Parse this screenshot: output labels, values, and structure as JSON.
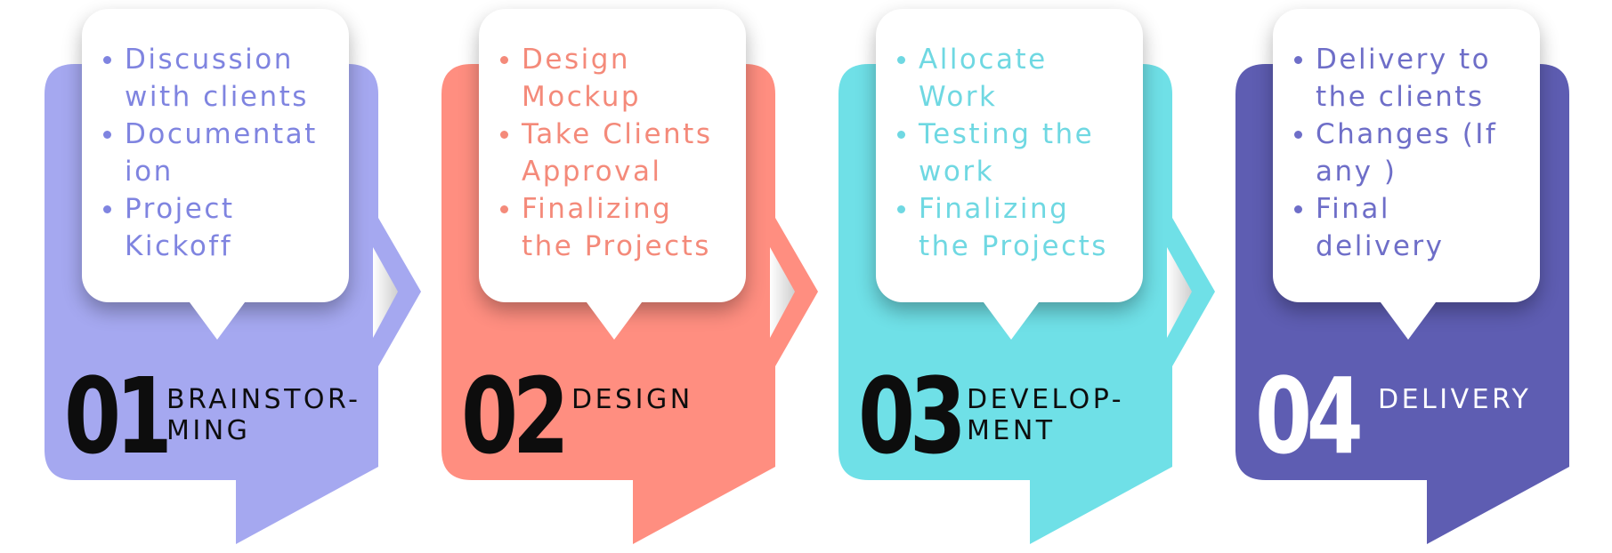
{
  "colors": {
    "brainstorming": "#A5A8F0",
    "design": "#FF8E80",
    "development": "#6FE0E7",
    "delivery": "#5E5DB2",
    "bullet_brainstorming": "#7F84E0",
    "bullet_design": "#F48A7A",
    "bullet_development": "#6FD8E2",
    "bullet_delivery": "#6E6EC8",
    "number_dark": "#0d0d0d",
    "number_light": "#ffffff"
  },
  "stages": [
    {
      "number": "01",
      "label": "BRAINSTOR-\nMING",
      "items": [
        "Discussion with clients",
        "Documentat ion",
        "Project Kickoff"
      ]
    },
    {
      "number": "02",
      "label": "DESIGN",
      "items": [
        "Design Mockup",
        "Take Clients Approval",
        "Finalizing the Projects"
      ]
    },
    {
      "number": "03",
      "label": "DEVELOP-\nMENT",
      "items": [
        "Allocate Work",
        "Testing the work",
        "Finalizing the Projects"
      ]
    },
    {
      "number": "04",
      "label": "DELIVERY",
      "items": [
        "Delivery to the clients",
        "Changes (If any )",
        "Final delivery"
      ]
    }
  ]
}
